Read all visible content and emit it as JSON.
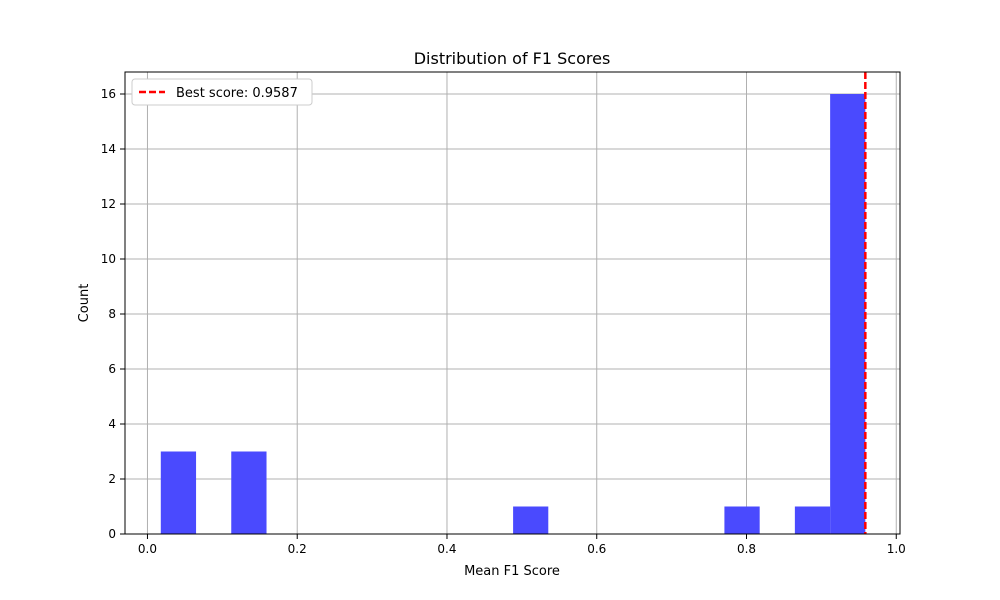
{
  "chart_data": {
    "type": "bar",
    "subtype": "histogram",
    "title": "Distribution of F1 Scores",
    "xlabel": "Mean F1 Score",
    "ylabel": "Count",
    "xlim": [
      -0.03,
      1.005
    ],
    "ylim": [
      0,
      16.8
    ],
    "xticks": [
      0.0,
      0.2,
      0.4,
      0.6,
      0.8,
      1.0
    ],
    "xtick_labels": [
      "0.0",
      "0.2",
      "0.4",
      "0.6",
      "0.8",
      "1.0"
    ],
    "yticks": [
      0,
      2,
      4,
      6,
      8,
      10,
      12,
      14,
      16
    ],
    "ytick_labels": [
      "0",
      "2",
      "4",
      "6",
      "8",
      "10",
      "12",
      "14",
      "16"
    ],
    "grid": true,
    "bar_color": "#4a4afe",
    "bins": [
      {
        "x0": 0.0178,
        "x1": 0.0649,
        "count": 3
      },
      {
        "x0": 0.1119,
        "x1": 0.159,
        "count": 3
      },
      {
        "x0": 0.4883,
        "x1": 0.5353,
        "count": 1
      },
      {
        "x0": 0.7705,
        "x1": 0.8176,
        "count": 1
      },
      {
        "x0": 0.8646,
        "x1": 0.9117,
        "count": 1
      },
      {
        "x0": 0.9117,
        "x1": 0.9587,
        "count": 16
      }
    ],
    "reference_line": {
      "value": 0.9587,
      "label": "Best score: 0.9587",
      "color": "#ff0000",
      "style": "dashed"
    },
    "legend": {
      "placement": "top-left",
      "entries": [
        "Best score: 0.9587"
      ]
    }
  }
}
